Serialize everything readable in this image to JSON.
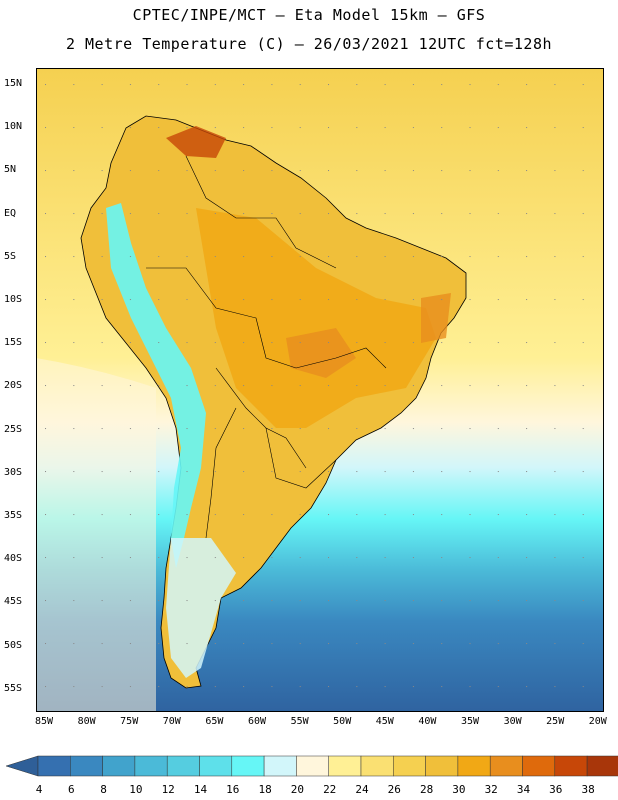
{
  "header": {
    "line1": "CPTEC/INPE/MCT –  Eta Model 15km – GFS",
    "line2": "2 Metre Temperature (C) – 26/03/2021 12UTC fct=128h"
  },
  "map": {
    "lat_labels": [
      "15N",
      "10N",
      "5N",
      "EQ",
      "5S",
      "10S",
      "15S",
      "20S",
      "25S",
      "30S",
      "35S",
      "40S",
      "45S",
      "50S",
      "55S"
    ],
    "lon_labels": [
      "85W",
      "80W",
      "75W",
      "70W",
      "65W",
      "60W",
      "55W",
      "50W",
      "45W",
      "40W",
      "35W",
      "30W",
      "25W",
      "20W"
    ]
  },
  "colorbar": {
    "labels": [
      "4",
      "6",
      "8",
      "10",
      "12",
      "14",
      "16",
      "18",
      "20",
      "22",
      "24",
      "26",
      "28",
      "30",
      "32",
      "34",
      "36",
      "38"
    ],
    "colors": [
      "#3570b0",
      "#3a88c0",
      "#41a3cc",
      "#4bbad8",
      "#55cde0",
      "#5ee0ea",
      "#66f6f6",
      "#d2f6fa",
      "#fff6dc",
      "#fff095",
      "#fae072",
      "#f5d050",
      "#f0bf3a",
      "#f1a815",
      "#e88e1e",
      "#df6a0c",
      "#c74708",
      "#a8360a"
    ],
    "low_color": "#2f5f98",
    "high_color": "#b8400a"
  }
}
